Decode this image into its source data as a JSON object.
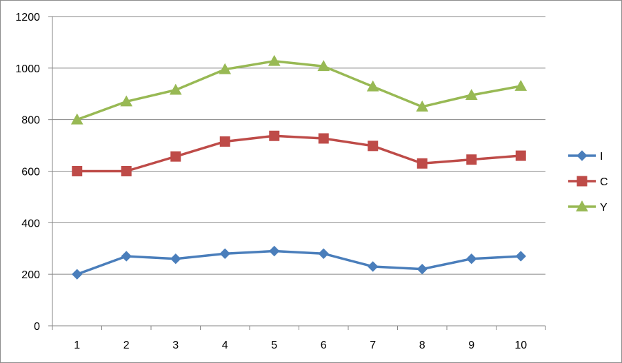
{
  "chart_data": {
    "type": "line",
    "title": "",
    "xlabel": "",
    "ylabel": "",
    "categories": [
      "1",
      "2",
      "3",
      "4",
      "5",
      "6",
      "7",
      "8",
      "9",
      "10"
    ],
    "ylim": [
      0,
      1200
    ],
    "yticks": [
      "0",
      "200",
      "400",
      "600",
      "800",
      "1000",
      "1200"
    ],
    "grid": true,
    "legend_position": "right",
    "series": [
      {
        "name": "I",
        "color": "#4a7ebb",
        "marker": "diamond",
        "values": [
          200,
          270,
          260,
          280,
          290,
          280,
          230,
          220,
          260,
          270
        ]
      },
      {
        "name": "C",
        "color": "#be4b48",
        "marker": "square",
        "values": [
          600,
          600,
          657,
          715,
          737,
          727,
          698,
          630,
          645,
          660
        ]
      },
      {
        "name": "Y",
        "color": "#98b954",
        "marker": "triangle",
        "values": [
          800,
          870,
          915,
          995,
          1027,
          1007,
          928,
          850,
          895,
          930
        ]
      }
    ]
  }
}
